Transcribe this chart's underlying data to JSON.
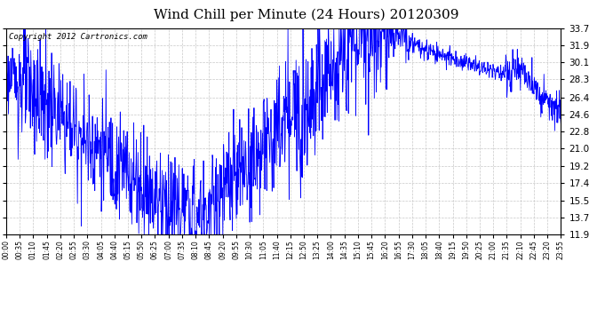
{
  "title": "Wind Chill per Minute (24 Hours) 20120309",
  "copyright": "Copyright 2012 Cartronics.com",
  "yticks": [
    11.9,
    13.7,
    15.5,
    17.4,
    19.2,
    21.0,
    22.8,
    24.6,
    26.4,
    28.3,
    30.1,
    31.9,
    33.7
  ],
  "ymin": 11.9,
  "ymax": 33.7,
  "line_color": "#0000ff",
  "bg_color": "#ffffff",
  "plot_bg_color": "#ffffff",
  "grid_color": "#c8c8c8",
  "title_fontsize": 11,
  "copyright_fontsize": 6.5,
  "xtick_labels": [
    "00:00",
    "00:35",
    "01:10",
    "01:45",
    "02:20",
    "02:55",
    "03:30",
    "04:05",
    "04:40",
    "05:15",
    "05:50",
    "06:25",
    "07:00",
    "07:35",
    "08:10",
    "08:45",
    "09:20",
    "09:55",
    "10:30",
    "11:05",
    "11:40",
    "12:15",
    "12:50",
    "13:25",
    "14:00",
    "14:35",
    "15:10",
    "15:45",
    "16:20",
    "16:55",
    "17:30",
    "18:05",
    "18:40",
    "19:15",
    "19:50",
    "20:25",
    "21:00",
    "21:35",
    "22:10",
    "22:45",
    "23:20",
    "23:55"
  ],
  "base_seed": 42,
  "noise_seed": 123
}
